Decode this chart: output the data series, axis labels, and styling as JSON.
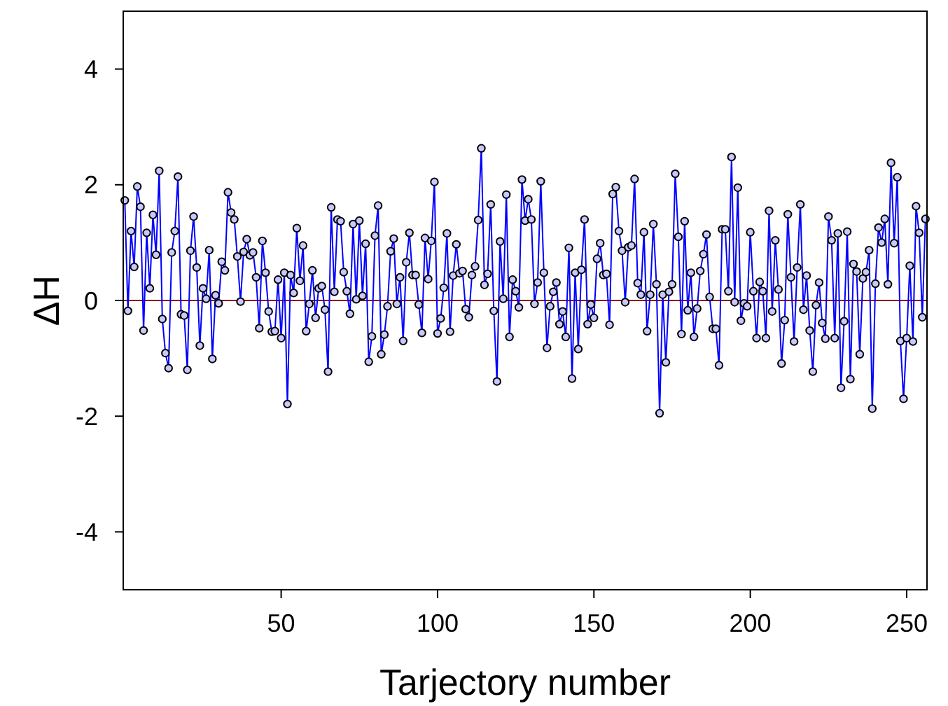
{
  "chart_data": {
    "type": "line",
    "xlabel": "Tarjectory number",
    "ylabel": "ΔH",
    "x": [
      0,
      1,
      2,
      3,
      4,
      5,
      6,
      7,
      8,
      9,
      10,
      11,
      12,
      13,
      14,
      15,
      16,
      17,
      18,
      19,
      20,
      21,
      22,
      23,
      24,
      25,
      26,
      27,
      28,
      29,
      30,
      31,
      32,
      33,
      34,
      35,
      36,
      37,
      38,
      39,
      40,
      41,
      42,
      43,
      44,
      45,
      46,
      47,
      48,
      49,
      50,
      51,
      52,
      53,
      54,
      55,
      56,
      57,
      58,
      59,
      60,
      61,
      62,
      63,
      64,
      65,
      66,
      67,
      68,
      69,
      70,
      71,
      72,
      73,
      74,
      75,
      76,
      77,
      78,
      79,
      80,
      81,
      82,
      83,
      84,
      85,
      86,
      87,
      88,
      89,
      90,
      91,
      92,
      93,
      94,
      95,
      96,
      97,
      98,
      99,
      100,
      101,
      102,
      103,
      104,
      105,
      106,
      107,
      108,
      109,
      110,
      111,
      112,
      113,
      114,
      115,
      116,
      117,
      118,
      119,
      120,
      121,
      122,
      123,
      124,
      125,
      126,
      127,
      128,
      129,
      130,
      131,
      132,
      133,
      134,
      135,
      136,
      137,
      138,
      139,
      140,
      141,
      142,
      143,
      144,
      145,
      146,
      147,
      148,
      149,
      150,
      151,
      152,
      153,
      154,
      155,
      156,
      157,
      158,
      159,
      160,
      161,
      162,
      163,
      164,
      165,
      166,
      167,
      168,
      169,
      170,
      171,
      172,
      173,
      174,
      175,
      176,
      177,
      178,
      179,
      180,
      181,
      182,
      183,
      184,
      185,
      186,
      187,
      188,
      189,
      190,
      191,
      192,
      193,
      194,
      195,
      196,
      197,
      198,
      199,
      200,
      201,
      202,
      203,
      204,
      205,
      206,
      207,
      208,
      209,
      210,
      211,
      212,
      213,
      214,
      215,
      216,
      217,
      218,
      219,
      220,
      221,
      222,
      223,
      224,
      225,
      226,
      227,
      228,
      229,
      230,
      231,
      232,
      233,
      234,
      235,
      236,
      237,
      238,
      239,
      240,
      241,
      242,
      243,
      244,
      245,
      246,
      247,
      248,
      249,
      250,
      251,
      252,
      253,
      254,
      255,
      256
    ],
    "series": [
      {
        "color": "#0000ff",
        "values": [
          1.73,
          -0.18,
          1.2,
          0.58,
          1.97,
          1.62,
          -0.52,
          1.17,
          0.21,
          1.48,
          0.79,
          2.24,
          -0.32,
          -0.91,
          -1.17,
          0.83,
          1.2,
          2.14,
          -0.24,
          -0.26,
          -1.2,
          0.86,
          1.45,
          0.57,
          -0.78,
          0.21,
          0.03,
          0.87,
          -1.01,
          0.09,
          -0.05,
          0.67,
          0.52,
          1.87,
          1.52,
          1.4,
          0.76,
          -0.02,
          0.84,
          1.06,
          0.78,
          0.83,
          0.4,
          -0.48,
          1.03,
          0.48,
          -0.19,
          -0.54,
          -0.53,
          0.36,
          -0.65,
          0.48,
          -1.79,
          0.44,
          0.13,
          1.25,
          0.34,
          0.95,
          -0.53,
          -0.06,
          0.52,
          -0.3,
          0.21,
          0.25,
          -0.16,
          -1.23,
          1.61,
          0.15,
          1.4,
          1.37,
          0.49,
          0.16,
          -0.23,
          1.32,
          0.02,
          1.38,
          0.08,
          0.98,
          -1.06,
          -0.62,
          1.12,
          1.64,
          -0.93,
          -0.59,
          -0.1,
          0.85,
          1.07,
          -0.06,
          0.4,
          -0.7,
          0.66,
          1.17,
          0.44,
          0.44,
          -0.07,
          -0.56,
          1.08,
          0.37,
          1.03,
          2.05,
          -0.57,
          -0.31,
          0.22,
          1.16,
          -0.54,
          0.43,
          0.97,
          0.47,
          0.51,
          -0.15,
          -0.29,
          0.44,
          0.59,
          1.39,
          2.63,
          0.27,
          0.46,
          1.66,
          -0.18,
          -1.4,
          1.02,
          0.03,
          1.83,
          -0.63,
          0.36,
          0.16,
          -0.12,
          2.09,
          1.38,
          1.75,
          1.4,
          -0.06,
          0.31,
          2.06,
          0.48,
          -0.82,
          -0.1,
          0.15,
          0.31,
          -0.41,
          -0.19,
          -0.63,
          0.91,
          -1.35,
          0.48,
          -0.84,
          0.53,
          1.4,
          -0.41,
          -0.07,
          -0.3,
          0.72,
          0.99,
          0.44,
          0.46,
          -0.42,
          1.84,
          1.96,
          1.2,
          0.86,
          -0.03,
          0.92,
          0.95,
          2.1,
          0.3,
          0.1,
          1.18,
          -0.53,
          0.1,
          1.32,
          0.28,
          -1.95,
          0.1,
          -1.07,
          0.15,
          0.28,
          2.19,
          1.1,
          -0.58,
          1.37,
          -0.17,
          0.48,
          -0.63,
          -0.14,
          0.51,
          0.8,
          1.14,
          0.06,
          -0.49,
          -0.49,
          -1.12,
          1.23,
          1.23,
          0.16,
          2.48,
          -0.03,
          1.95,
          -0.35,
          -0.05,
          -0.1,
          1.18,
          0.16,
          -0.65,
          0.32,
          0.16,
          -0.65,
          1.55,
          -0.19,
          1.04,
          0.19,
          -1.09,
          -0.34,
          1.49,
          0.4,
          -0.71,
          0.57,
          1.66,
          -0.16,
          0.43,
          -0.52,
          -1.23,
          -0.08,
          0.31,
          -0.39,
          -0.66,
          1.45,
          1.04,
          -0.65,
          1.16,
          -1.51,
          -0.36,
          1.19,
          -1.36,
          0.63,
          0.5,
          -0.93,
          0.38,
          0.49,
          0.87,
          -1.87,
          0.29,
          1.26,
          1.0,
          1.41,
          0.28,
          2.38,
          0.99,
          2.13,
          -0.7,
          -1.7,
          -0.65,
          0.6,
          -0.71,
          1.63,
          1.17,
          -0.29,
          1.41
        ]
      }
    ],
    "xlim": [
      -0.5,
      256.5
    ],
    "xticks": [
      50,
      100,
      150,
      200,
      250
    ],
    "ylim": [
      -5,
      5
    ],
    "yticks": [
      -4,
      -2,
      0,
      2,
      4
    ],
    "marker": "circle",
    "line_style": "solid",
    "grid": false,
    "ref_lines": [
      {
        "axis": "y",
        "value": 0,
        "color": "#8b0000"
      }
    ]
  }
}
